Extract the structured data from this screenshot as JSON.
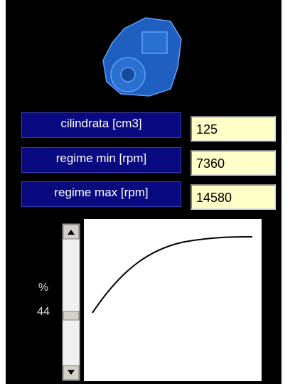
{
  "fields": [
    {
      "label": "cilindrata [cm3]",
      "value": "125"
    },
    {
      "label": "regime min [rpm]",
      "value": "7360"
    },
    {
      "label": "regime max [rpm]",
      "value": "14580"
    }
  ],
  "scroll": {
    "unit": "%",
    "value": 44
  }
}
